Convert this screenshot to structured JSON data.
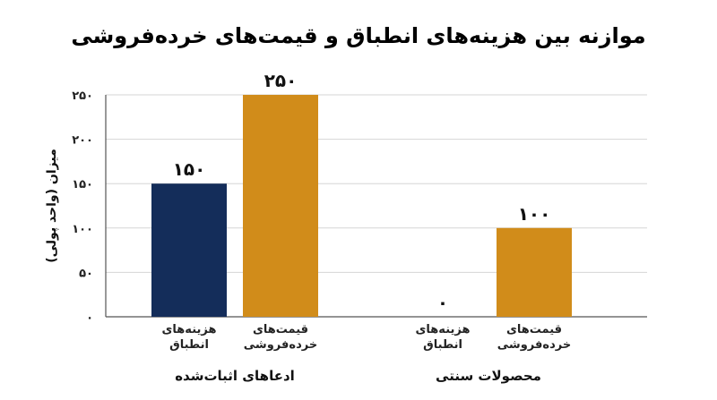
{
  "chart_data": {
    "type": "bar",
    "title": "موازنه بین هزینه‌های انطباق و قیمت‌های خرده‌فروشی",
    "ylabel": "میزان (واحد پولی)",
    "xlabel": "",
    "ylim": [
      0,
      250
    ],
    "yticks": [
      "0",
      "50",
      "100",
      "150",
      "200",
      "250"
    ],
    "yticks_values": [
      0,
      50,
      100,
      150,
      200,
      250
    ],
    "grid": true,
    "groups": [
      {
        "label": "ادعاهای اثبات‌شده",
        "bars": [
          {
            "category": "هزینه‌های انطباق",
            "value": 150,
            "value_label": "150",
            "color": "#142D5A"
          },
          {
            "category": "قیمت‌های خرده‌فروشی",
            "value": 250,
            "value_label": "250",
            "color": "#D18C1A"
          }
        ]
      },
      {
        "label": "محصولات سنتی",
        "bars": [
          {
            "category": "هزینه‌های انطباق",
            "value": 0,
            "value_label": "0",
            "color": "#142D5A"
          },
          {
            "category": "قیمت‌های خرده‌فروشی",
            "value": 100,
            "value_label": "100",
            "color": "#D18C1A"
          }
        ]
      }
    ]
  }
}
